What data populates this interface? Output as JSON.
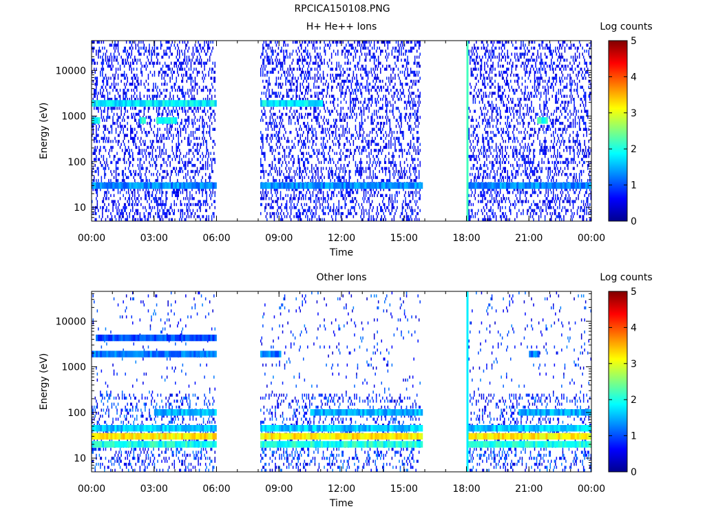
{
  "figure_title": "RPCICA150108.PNG",
  "colors": {
    "colormap": [
      "#00008f",
      "#0000ff",
      "#0080ff",
      "#00ffff",
      "#80ff80",
      "#ffff00",
      "#ff8000",
      "#ff0000",
      "#800000"
    ],
    "background": "#ffffff"
  },
  "chart_data": [
    {
      "type": "heatmap",
      "title": "H+ He++ Ions",
      "xlabel": "Time",
      "ylabel": "Energy (eV)",
      "x_ticks": [
        "00:00",
        "03:00",
        "06:00",
        "09:00",
        "12:00",
        "15:00",
        "18:00",
        "21:00",
        "00:00"
      ],
      "xlim_hours": [
        0,
        24
      ],
      "y_ticks": [
        "10",
        "100",
        "1000",
        "10000"
      ],
      "y_tick_values": [
        10,
        100,
        1000,
        10000
      ],
      "ylim": [
        5,
        45000
      ],
      "y_scale": "log",
      "colorbar": {
        "label": "Log counts",
        "ticks": [
          "0",
          "1",
          "2",
          "3",
          "4",
          "5"
        ],
        "range": [
          0,
          5
        ]
      },
      "data_intervals_hours": [
        [
          0.0,
          5.9
        ],
        [
          8.1,
          15.8
        ],
        [
          18.0,
          24.0
        ]
      ],
      "features": [
        {
          "energy_eV": 30,
          "log_counts": 1.3,
          "hours": [
            [
              0.0,
              5.9
            ],
            [
              8.1,
              15.8
            ],
            [
              18.1,
              24.0
            ]
          ]
        },
        {
          "energy_eV": 1900,
          "log_counts": 1.8,
          "hours": [
            [
              0.0,
              5.9
            ],
            [
              8.1,
              11.0
            ]
          ]
        },
        {
          "energy_eV": 800,
          "log_counts": 2.0,
          "hours": [
            [
              0.0,
              0.4
            ],
            [
              2.3,
              2.6
            ],
            [
              3.1,
              4.1
            ],
            [
              21.4,
              21.9
            ]
          ]
        },
        {
          "energy_eV": "all",
          "log_counts": 2.2,
          "hours": [
            [
              18.0,
              18.1
            ]
          ]
        }
      ]
    },
    {
      "type": "heatmap",
      "title": "Other Ions",
      "xlabel": "Time",
      "ylabel": "Energy (eV)",
      "x_ticks": [
        "00:00",
        "03:00",
        "06:00",
        "09:00",
        "12:00",
        "15:00",
        "18:00",
        "21:00",
        "00:00"
      ],
      "xlim_hours": [
        0,
        24
      ],
      "y_ticks": [
        "10",
        "100",
        "1000",
        "10000"
      ],
      "y_tick_values": [
        10,
        100,
        1000,
        10000
      ],
      "ylim": [
        5,
        45000
      ],
      "y_scale": "log",
      "colorbar": {
        "label": "Log counts",
        "ticks": [
          "0",
          "1",
          "2",
          "3",
          "4",
          "5"
        ],
        "range": [
          0,
          5
        ]
      },
      "data_intervals_hours": [
        [
          0.0,
          5.9
        ],
        [
          8.1,
          15.8
        ],
        [
          18.0,
          24.0
        ]
      ],
      "features": [
        {
          "energy_eV": 30,
          "log_counts": 3.2,
          "hours": [
            [
              0.0,
              5.9
            ],
            [
              8.1,
              15.8
            ],
            [
              18.1,
              24.0
            ]
          ]
        },
        {
          "energy_eV": 20,
          "log_counts": 2.0,
          "hours": [
            [
              0.0,
              5.9
            ],
            [
              8.1,
              15.8
            ],
            [
              18.1,
              24.0
            ]
          ]
        },
        {
          "energy_eV": 45,
          "log_counts": 1.6,
          "hours": [
            [
              0.0,
              5.9
            ],
            [
              8.1,
              15.8
            ],
            [
              18.1,
              24.0
            ]
          ]
        },
        {
          "energy_eV": 100,
          "log_counts": 1.5,
          "hours": [
            [
              3.0,
              5.9
            ],
            [
              10.5,
              15.8
            ],
            [
              20.5,
              24.0
            ]
          ]
        },
        {
          "energy_eV": 4300,
          "log_counts": 1.0,
          "hours": [
            [
              0.2,
              5.9
            ]
          ]
        },
        {
          "energy_eV": 1900,
          "log_counts": 1.2,
          "hours": [
            [
              0.0,
              5.9
            ],
            [
              8.1,
              9.0
            ],
            [
              21.0,
              21.5
            ]
          ]
        },
        {
          "energy_eV": "all",
          "log_counts": 1.8,
          "hours": [
            [
              18.0,
              18.1
            ]
          ]
        }
      ]
    }
  ]
}
